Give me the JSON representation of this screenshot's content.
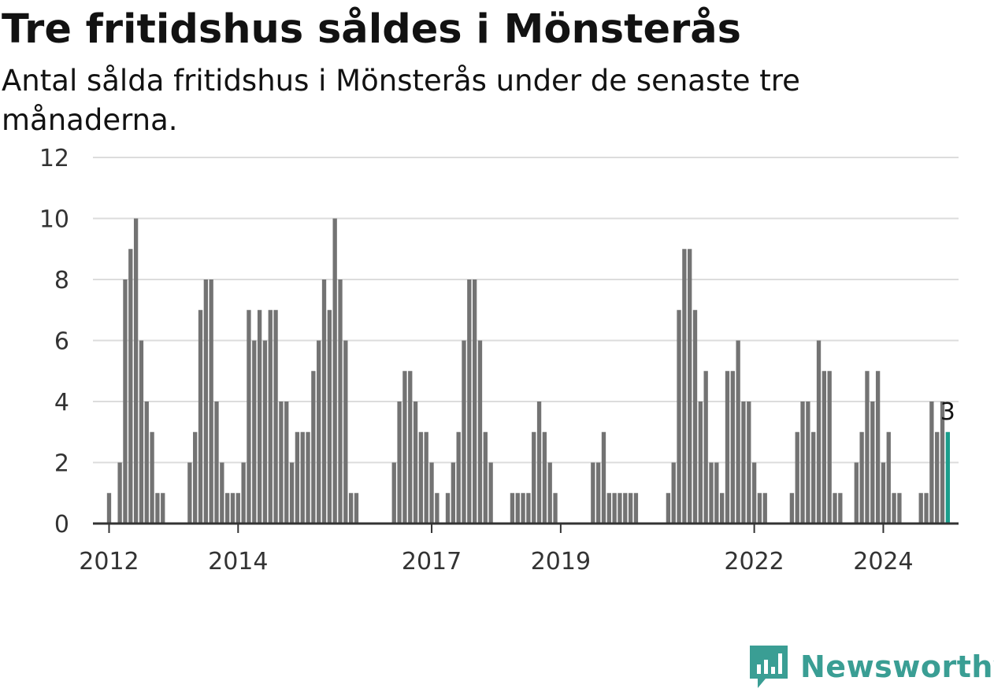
{
  "title": "Tre fritidshus såldes i Mönsterås",
  "subtitle": "Antal sålda fritidshus i Mönsterås under de senaste tre månaderna.",
  "brand": {
    "name": "Newsworthy",
    "color": "#3a9e94",
    "icon": "newsworthy-logo-icon"
  },
  "chart_data": {
    "type": "bar",
    "title": "Tre fritidshus såldes i Mönsterås",
    "xlabel": "",
    "ylabel": "",
    "ylim": [
      0,
      12
    ],
    "yticks": [
      0,
      2,
      4,
      6,
      8,
      10,
      12
    ],
    "x_start": "2011-10",
    "x_end": "2025-03",
    "x_tick_labels": [
      {
        "label": "2012",
        "date": "2012-01"
      },
      {
        "label": "2014",
        "date": "2014-01"
      },
      {
        "label": "2017",
        "date": "2017-01"
      },
      {
        "label": "2019",
        "date": "2019-01"
      },
      {
        "label": "2022",
        "date": "2022-01"
      },
      {
        "label": "2024",
        "date": "2024-01"
      }
    ],
    "grid": true,
    "bar_color": "#737373",
    "highlight_color": "#1a9e8c",
    "highlight_label": "3",
    "months": [
      "2012-01",
      "2012-02",
      "2012-03",
      "2012-04",
      "2012-05",
      "2012-06",
      "2012-07",
      "2012-08",
      "2012-09",
      "2012-10",
      "2012-11",
      "2012-12",
      "2013-01",
      "2013-02",
      "2013-03",
      "2013-04",
      "2013-05",
      "2013-06",
      "2013-07",
      "2013-08",
      "2013-09",
      "2013-10",
      "2013-11",
      "2013-12",
      "2014-01",
      "2014-02",
      "2014-03",
      "2014-04",
      "2014-05",
      "2014-06",
      "2014-07",
      "2014-08",
      "2014-09",
      "2014-10",
      "2014-11",
      "2014-12",
      "2015-01",
      "2015-02",
      "2015-03",
      "2015-04",
      "2015-05",
      "2015-06",
      "2015-07",
      "2015-08",
      "2015-09",
      "2015-10",
      "2015-11",
      "2015-12",
      "2016-01",
      "2016-02",
      "2016-03",
      "2016-04",
      "2016-05",
      "2016-06",
      "2016-07",
      "2016-08",
      "2016-09",
      "2016-10",
      "2016-11",
      "2016-12",
      "2017-01",
      "2017-02",
      "2017-03",
      "2017-04",
      "2017-05",
      "2017-06",
      "2017-07",
      "2017-08",
      "2017-09",
      "2017-10",
      "2017-11",
      "2017-12",
      "2018-01",
      "2018-02",
      "2018-03",
      "2018-04",
      "2018-05",
      "2018-06",
      "2018-07",
      "2018-08",
      "2018-09",
      "2018-10",
      "2018-11",
      "2018-12",
      "2019-01",
      "2019-02",
      "2019-03",
      "2019-04",
      "2019-05",
      "2019-06",
      "2019-07",
      "2019-08",
      "2019-09",
      "2019-10",
      "2019-11",
      "2019-12",
      "2020-01",
      "2020-02",
      "2020-03",
      "2020-04",
      "2020-05",
      "2020-06",
      "2020-07",
      "2020-08",
      "2020-09",
      "2020-10",
      "2020-11",
      "2020-12",
      "2021-01",
      "2021-02",
      "2021-03",
      "2021-04",
      "2021-05",
      "2021-06",
      "2021-07",
      "2021-08",
      "2021-09",
      "2021-10",
      "2021-11",
      "2021-12",
      "2022-01",
      "2022-02",
      "2022-03",
      "2022-04",
      "2022-05",
      "2022-06",
      "2022-07",
      "2022-08",
      "2022-09",
      "2022-10",
      "2022-11",
      "2022-12",
      "2023-01",
      "2023-02",
      "2023-03",
      "2023-04",
      "2023-05",
      "2023-06",
      "2023-07",
      "2023-08",
      "2023-09",
      "2023-10",
      "2023-11",
      "2023-12",
      "2024-01",
      "2024-02",
      "2024-03",
      "2024-04",
      "2024-05",
      "2024-06",
      "2024-07",
      "2024-08",
      "2024-09",
      "2024-10",
      "2024-11",
      "2024-12",
      "2025-01"
    ],
    "values": [
      1,
      0,
      2,
      8,
      9,
      10,
      6,
      4,
      3,
      1,
      1,
      0,
      0,
      0,
      0,
      2,
      3,
      7,
      8,
      8,
      4,
      2,
      1,
      1,
      1,
      2,
      7,
      6,
      7,
      6,
      7,
      7,
      4,
      4,
      2,
      3,
      3,
      3,
      5,
      6,
      8,
      7,
      10,
      8,
      6,
      1,
      1,
      0,
      0,
      0,
      0,
      0,
      0,
      2,
      4,
      5,
      5,
      4,
      3,
      3,
      2,
      1,
      0,
      1,
      2,
      3,
      6,
      8,
      8,
      6,
      3,
      2,
      0,
      0,
      0,
      1,
      1,
      1,
      1,
      3,
      4,
      3,
      2,
      1,
      0,
      0,
      0,
      0,
      0,
      0,
      2,
      2,
      3,
      1,
      1,
      1,
      1,
      1,
      1,
      0,
      0,
      0,
      0,
      0,
      1,
      2,
      7,
      9,
      9,
      7,
      4,
      5,
      2,
      2,
      1,
      5,
      5,
      6,
      4,
      4,
      2,
      1,
      1,
      0,
      0,
      0,
      0,
      1,
      3,
      4,
      4,
      3,
      6,
      5,
      5,
      1,
      1,
      0,
      0,
      2,
      3,
      5,
      4,
      5,
      2,
      3,
      1,
      1,
      0,
      0,
      0,
      1,
      1,
      4,
      3,
      4,
      3
    ]
  }
}
